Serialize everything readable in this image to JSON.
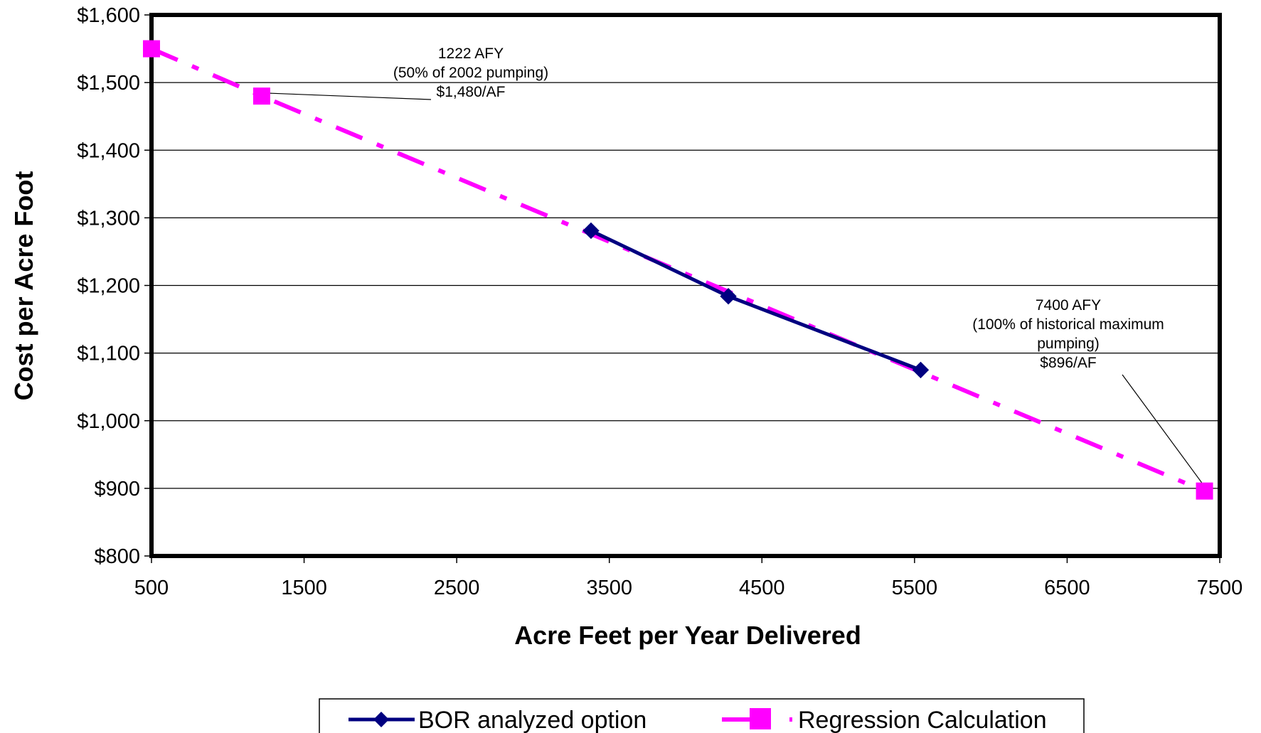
{
  "chart_data": {
    "type": "line",
    "xlabel": "Acre Feet per Year Delivered",
    "ylabel": "Cost per Acre Foot",
    "xlim": [
      500,
      7500
    ],
    "ylim": [
      800,
      1600
    ],
    "x_ticks": [
      500,
      1500,
      2500,
      3500,
      4500,
      5500,
      6500,
      7500
    ],
    "y_ticks": [
      800,
      900,
      1000,
      1100,
      1200,
      1300,
      1400,
      1500,
      1600
    ],
    "x_tick_labels": [
      "500",
      "1500",
      "2500",
      "3500",
      "4500",
      "5500",
      "6500",
      "7500"
    ],
    "y_tick_labels": [
      "$800",
      "$900",
      "$1,000",
      "$1,100",
      "$1,200",
      "$1,300",
      "$1,400",
      "$1,500",
      "$1,600"
    ],
    "grid": "horizontal",
    "legend_position": "bottom",
    "series": [
      {
        "name": "BOR analyzed option",
        "color": "#000080",
        "marker": "diamond",
        "line_style": "solid",
        "x": [
          3380,
          4280,
          5540
        ],
        "y": [
          1281,
          1184,
          1075
        ]
      },
      {
        "name": "Regression Calculation",
        "color": "#FF00FF",
        "marker": "square",
        "line_style": "dash-dot",
        "x": [
          500,
          1222,
          7400
        ],
        "y": [
          1550,
          1480,
          896
        ]
      }
    ],
    "annotations": [
      {
        "lines": [
          "1222 AFY",
          "(50% of 2002 pumping)",
          "$1,480/AF"
        ],
        "points_to": {
          "x": 1222,
          "y": 1480
        }
      },
      {
        "lines": [
          "7400 AFY",
          "(100% of historical maximum",
          "pumping)",
          "$896/AF"
        ],
        "points_to": {
          "x": 7400,
          "y": 896
        }
      }
    ]
  }
}
